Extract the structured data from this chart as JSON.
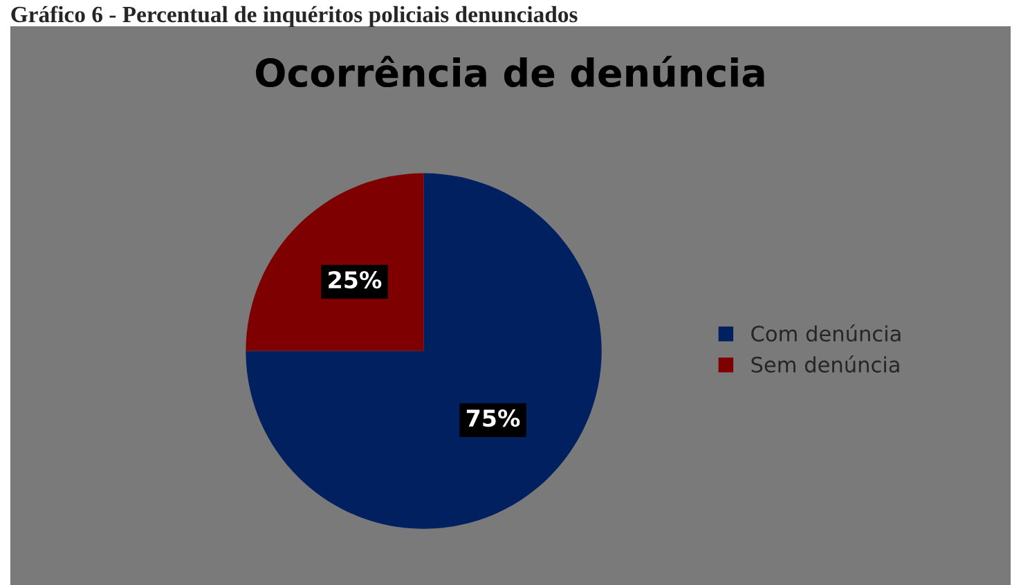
{
  "chart_data": {
    "type": "pie",
    "title": "Ocorrência de denúncia",
    "annotations": [
      "Gráfico 6 - Percentual de inquéritos policiais denunciados"
    ],
    "categories": [
      "Com denúncia",
      "Sem denúncia"
    ],
    "values": [
      75,
      25
    ],
    "colors": [
      "#002060",
      "#7f0000"
    ],
    "value_labels": [
      "75%",
      "25%"
    ],
    "legend": "right"
  }
}
